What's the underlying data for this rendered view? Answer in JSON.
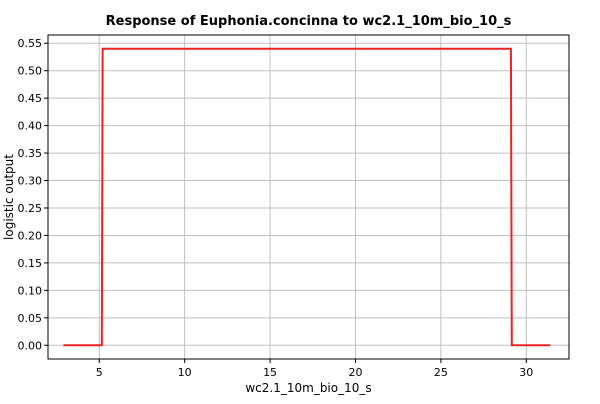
{
  "chart_data": {
    "type": "line",
    "title": "Response of Euphonia.concinna to wc2.1_10m_bio_10_s",
    "xlabel": "wc2.1_10m_bio_10_s",
    "ylabel": "logistic output",
    "xlim": [
      2.0,
      32.5
    ],
    "ylim": [
      -0.025,
      0.565
    ],
    "xticks": [
      5,
      10,
      15,
      20,
      25,
      30
    ],
    "yticks": [
      0.0,
      0.05,
      0.1,
      0.15,
      0.2,
      0.25,
      0.3,
      0.35,
      0.4,
      0.45,
      0.5,
      0.55
    ],
    "ytick_labels": [
      "0.00",
      "0.05",
      "0.10",
      "0.15",
      "0.20",
      "0.25",
      "0.30",
      "0.35",
      "0.40",
      "0.45",
      "0.50",
      "0.55"
    ],
    "grid": true,
    "series": [
      {
        "color": "#ee2222",
        "x": [
          2.9,
          5.15,
          5.2,
          29.1,
          29.15,
          31.4
        ],
        "y": [
          0.0,
          0.0,
          0.54,
          0.54,
          0.0,
          0.0
        ]
      }
    ]
  }
}
